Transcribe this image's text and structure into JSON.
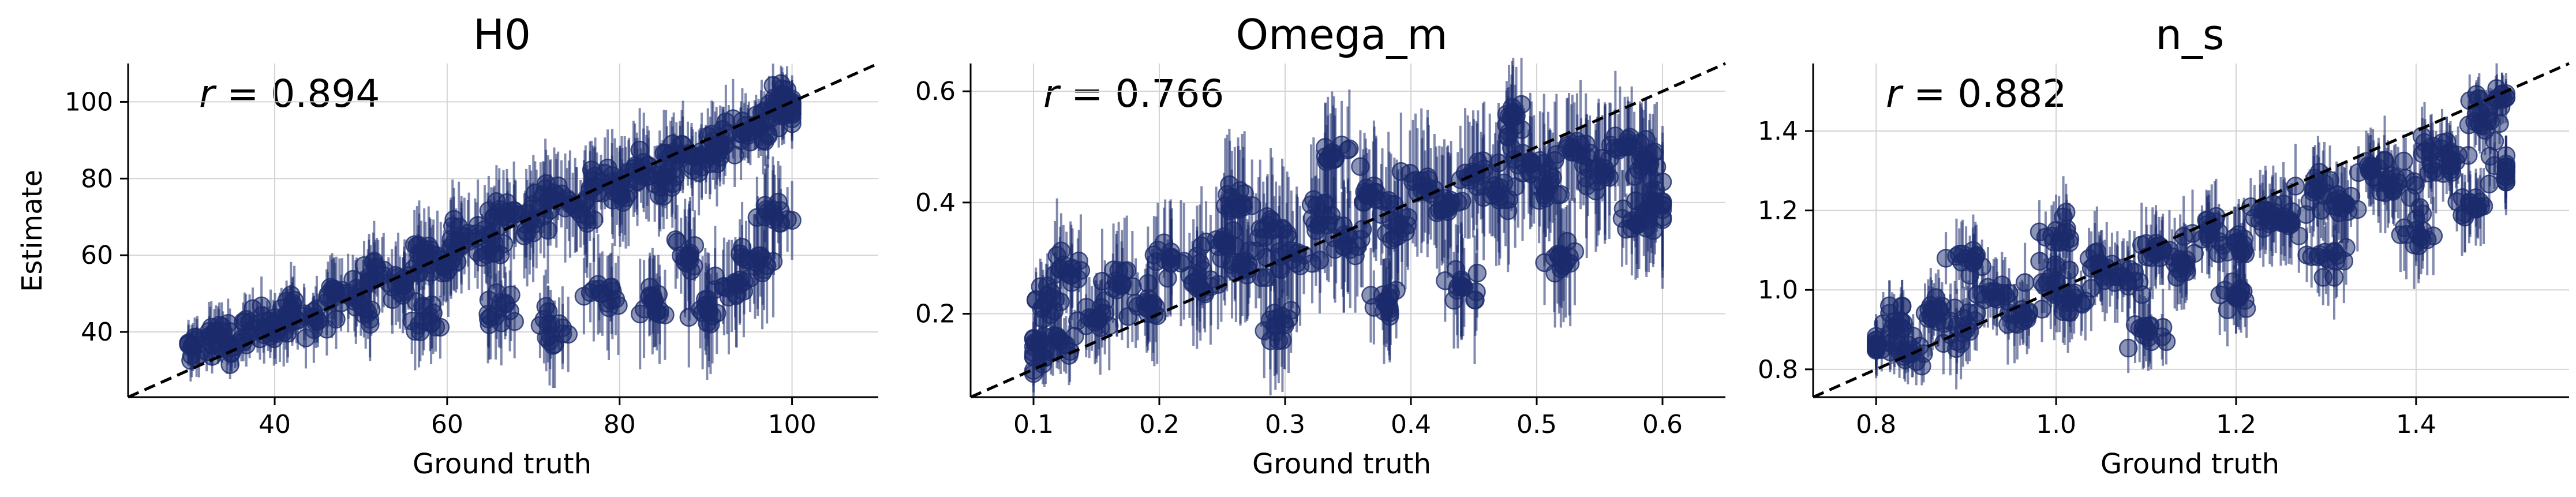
{
  "figure": {
    "panels": [
      {
        "title": "H0",
        "xlabel": "Ground truth",
        "ylabel": "Estimate",
        "annotation": {
          "symbol": "r",
          "text": " = 0.894"
        }
      },
      {
        "title": "Omega_m",
        "xlabel": "Ground truth",
        "ylabel": "",
        "annotation": {
          "symbol": "r",
          "text": " = 0.766"
        }
      },
      {
        "title": "n_s",
        "xlabel": "Ground truth",
        "ylabel": "",
        "annotation": {
          "symbol": "r",
          "text": " = 0.882"
        }
      }
    ]
  },
  "chart_data": [
    {
      "type": "scatter",
      "title": "H0",
      "xlabel": "Ground truth",
      "ylabel": "Estimate",
      "xlim": [
        23,
        110
      ],
      "ylim": [
        23,
        110
      ],
      "xticks": [
        40,
        60,
        80,
        100
      ],
      "yticks": [
        40,
        60,
        80,
        100
      ],
      "xtick_labels": [
        "40",
        "60",
        "80",
        "100"
      ],
      "ytick_labels": [
        "40",
        "60",
        "80",
        "100"
      ],
      "grid": true,
      "identity_line": true,
      "annotation": "r = 0.894",
      "color": "#1a2a6c",
      "error_bars": true,
      "truth_range": [
        30,
        100
      ],
      "points": [
        {
          "x": 30,
          "y": 37,
          "err": 5
        },
        {
          "x": 33,
          "y": 40,
          "err": 6
        },
        {
          "x": 35,
          "y": 36,
          "err": 5
        },
        {
          "x": 38,
          "y": 42,
          "err": 6
        },
        {
          "x": 40,
          "y": 40,
          "err": 7
        },
        {
          "x": 42,
          "y": 46,
          "err": 7
        },
        {
          "x": 45,
          "y": 43,
          "err": 7
        },
        {
          "x": 47,
          "y": 50,
          "err": 8
        },
        {
          "x": 50,
          "y": 47,
          "err": 8
        },
        {
          "x": 52,
          "y": 55,
          "err": 9
        },
        {
          "x": 55,
          "y": 52,
          "err": 9
        },
        {
          "x": 57,
          "y": 60,
          "err": 9
        },
        {
          "x": 60,
          "y": 58,
          "err": 10
        },
        {
          "x": 62,
          "y": 65,
          "err": 10
        },
        {
          "x": 65,
          "y": 62,
          "err": 10
        },
        {
          "x": 67,
          "y": 70,
          "err": 10
        },
        {
          "x": 70,
          "y": 68,
          "err": 11
        },
        {
          "x": 72,
          "y": 75,
          "err": 10
        },
        {
          "x": 75,
          "y": 72,
          "err": 11
        },
        {
          "x": 77,
          "y": 78,
          "err": 10
        },
        {
          "x": 80,
          "y": 76,
          "err": 11
        },
        {
          "x": 82,
          "y": 82,
          "err": 10
        },
        {
          "x": 85,
          "y": 80,
          "err": 10
        },
        {
          "x": 87,
          "y": 86,
          "err": 9
        },
        {
          "x": 90,
          "y": 85,
          "err": 9
        },
        {
          "x": 92,
          "y": 90,
          "err": 8
        },
        {
          "x": 95,
          "y": 92,
          "err": 8
        },
        {
          "x": 97,
          "y": 95,
          "err": 7
        },
        {
          "x": 100,
          "y": 97,
          "err": 6
        },
        {
          "x": 99,
          "y": 102,
          "err": 5
        },
        {
          "x": 58,
          "y": 44,
          "err": 9
        },
        {
          "x": 66,
          "y": 46,
          "err": 10
        },
        {
          "x": 72,
          "y": 42,
          "err": 9
        },
        {
          "x": 78,
          "y": 50,
          "err": 11
        },
        {
          "x": 84,
          "y": 48,
          "err": 12
        },
        {
          "x": 90,
          "y": 46,
          "err": 12
        },
        {
          "x": 93,
          "y": 52,
          "err": 12
        },
        {
          "x": 96,
          "y": 58,
          "err": 12
        },
        {
          "x": 98,
          "y": 70,
          "err": 11
        },
        {
          "x": 88,
          "y": 60,
          "err": 12
        }
      ]
    },
    {
      "type": "scatter",
      "title": "Omega_m",
      "xlabel": "Ground truth",
      "ylabel": "",
      "xlim": [
        0.05,
        0.65
      ],
      "ylim": [
        0.05,
        0.65
      ],
      "xticks": [
        0.1,
        0.2,
        0.3,
        0.4,
        0.5,
        0.6
      ],
      "yticks": [
        0.2,
        0.4,
        0.6
      ],
      "xtick_labels": [
        "0.1",
        "0.2",
        "0.3",
        "0.4",
        "0.5",
        "0.6"
      ],
      "ytick_labels": [
        "0.2",
        "0.4",
        "0.6"
      ],
      "grid": true,
      "identity_line": true,
      "annotation": "r = 0.766",
      "color": "#1a2a6c",
      "error_bars": true,
      "truth_range": [
        0.1,
        0.6
      ],
      "points": [
        {
          "x": 0.1,
          "y": 0.13,
          "err": 0.04
        },
        {
          "x": 0.11,
          "y": 0.22,
          "err": 0.07
        },
        {
          "x": 0.12,
          "y": 0.15,
          "err": 0.05
        },
        {
          "x": 0.13,
          "y": 0.28,
          "err": 0.08
        },
        {
          "x": 0.15,
          "y": 0.19,
          "err": 0.07
        },
        {
          "x": 0.17,
          "y": 0.25,
          "err": 0.08
        },
        {
          "x": 0.19,
          "y": 0.21,
          "err": 0.08
        },
        {
          "x": 0.21,
          "y": 0.3,
          "err": 0.09
        },
        {
          "x": 0.23,
          "y": 0.26,
          "err": 0.09
        },
        {
          "x": 0.25,
          "y": 0.33,
          "err": 0.09
        },
        {
          "x": 0.27,
          "y": 0.28,
          "err": 0.09
        },
        {
          "x": 0.29,
          "y": 0.35,
          "err": 0.1
        },
        {
          "x": 0.31,
          "y": 0.31,
          "err": 0.1
        },
        {
          "x": 0.33,
          "y": 0.38,
          "err": 0.1
        },
        {
          "x": 0.35,
          "y": 0.34,
          "err": 0.1
        },
        {
          "x": 0.37,
          "y": 0.41,
          "err": 0.1
        },
        {
          "x": 0.39,
          "y": 0.36,
          "err": 0.1
        },
        {
          "x": 0.41,
          "y": 0.43,
          "err": 0.1
        },
        {
          "x": 0.43,
          "y": 0.39,
          "err": 0.1
        },
        {
          "x": 0.45,
          "y": 0.45,
          "err": 0.1
        },
        {
          "x": 0.47,
          "y": 0.41,
          "err": 0.1
        },
        {
          "x": 0.49,
          "y": 0.47,
          "err": 0.1
        },
        {
          "x": 0.51,
          "y": 0.43,
          "err": 0.1
        },
        {
          "x": 0.53,
          "y": 0.49,
          "err": 0.09
        },
        {
          "x": 0.55,
          "y": 0.45,
          "err": 0.1
        },
        {
          "x": 0.57,
          "y": 0.5,
          "err": 0.09
        },
        {
          "x": 0.59,
          "y": 0.47,
          "err": 0.09
        },
        {
          "x": 0.6,
          "y": 0.4,
          "err": 0.1
        },
        {
          "x": 0.44,
          "y": 0.25,
          "err": 0.09
        },
        {
          "x": 0.52,
          "y": 0.3,
          "err": 0.09
        },
        {
          "x": 0.58,
          "y": 0.36,
          "err": 0.08
        },
        {
          "x": 0.38,
          "y": 0.22,
          "err": 0.08
        },
        {
          "x": 0.3,
          "y": 0.18,
          "err": 0.08
        },
        {
          "x": 0.26,
          "y": 0.4,
          "err": 0.1
        },
        {
          "x": 0.48,
          "y": 0.55,
          "err": 0.08
        },
        {
          "x": 0.34,
          "y": 0.48,
          "err": 0.09
        }
      ]
    },
    {
      "type": "scatter",
      "title": "n_s",
      "xlabel": "Ground truth",
      "ylabel": "",
      "xlim": [
        0.73,
        1.57
      ],
      "ylim": [
        0.73,
        1.57
      ],
      "xticks": [
        0.8,
        1.0,
        1.2,
        1.4
      ],
      "yticks": [
        0.8,
        1.0,
        1.2,
        1.4
      ],
      "xtick_labels": [
        "0.8",
        "1.0",
        "1.2",
        "1.4"
      ],
      "ytick_labels": [
        "0.8",
        "1.0",
        "1.2",
        "1.4"
      ],
      "grid": true,
      "identity_line": true,
      "annotation": "r = 0.882",
      "color": "#1a2a6c",
      "error_bars": true,
      "truth_range": [
        0.8,
        1.5
      ],
      "points": [
        {
          "x": 0.8,
          "y": 0.86,
          "err": 0.06
        },
        {
          "x": 0.82,
          "y": 0.92,
          "err": 0.07
        },
        {
          "x": 0.84,
          "y": 0.84,
          "err": 0.06
        },
        {
          "x": 0.87,
          "y": 0.95,
          "err": 0.08
        },
        {
          "x": 0.9,
          "y": 0.9,
          "err": 0.08
        },
        {
          "x": 0.93,
          "y": 0.98,
          "err": 0.08
        },
        {
          "x": 0.96,
          "y": 0.94,
          "err": 0.08
        },
        {
          "x": 0.99,
          "y": 1.02,
          "err": 0.09
        },
        {
          "x": 1.02,
          "y": 0.98,
          "err": 0.09
        },
        {
          "x": 1.05,
          "y": 1.06,
          "err": 0.09
        },
        {
          "x": 1.08,
          "y": 1.02,
          "err": 0.09
        },
        {
          "x": 1.11,
          "y": 1.1,
          "err": 0.09
        },
        {
          "x": 1.14,
          "y": 1.07,
          "err": 0.09
        },
        {
          "x": 1.17,
          "y": 1.15,
          "err": 0.09
        },
        {
          "x": 1.2,
          "y": 1.12,
          "err": 0.09
        },
        {
          "x": 1.23,
          "y": 1.2,
          "err": 0.09
        },
        {
          "x": 1.26,
          "y": 1.17,
          "err": 0.09
        },
        {
          "x": 1.29,
          "y": 1.25,
          "err": 0.09
        },
        {
          "x": 1.32,
          "y": 1.22,
          "err": 0.09
        },
        {
          "x": 1.35,
          "y": 1.3,
          "err": 0.09
        },
        {
          "x": 1.38,
          "y": 1.27,
          "err": 0.09
        },
        {
          "x": 1.41,
          "y": 1.35,
          "err": 0.08
        },
        {
          "x": 1.44,
          "y": 1.32,
          "err": 0.08
        },
        {
          "x": 1.47,
          "y": 1.42,
          "err": 0.07
        },
        {
          "x": 1.49,
          "y": 1.48,
          "err": 0.05
        },
        {
          "x": 1.5,
          "y": 1.3,
          "err": 0.07
        },
        {
          "x": 1.3,
          "y": 1.08,
          "err": 0.09
        },
        {
          "x": 1.4,
          "y": 1.15,
          "err": 0.09
        },
        {
          "x": 1.2,
          "y": 0.98,
          "err": 0.09
        },
        {
          "x": 1.1,
          "y": 0.9,
          "err": 0.08
        },
        {
          "x": 1.0,
          "y": 1.15,
          "err": 0.09
        },
        {
          "x": 0.9,
          "y": 1.08,
          "err": 0.08
        },
        {
          "x": 1.46,
          "y": 1.22,
          "err": 0.08
        }
      ]
    }
  ]
}
